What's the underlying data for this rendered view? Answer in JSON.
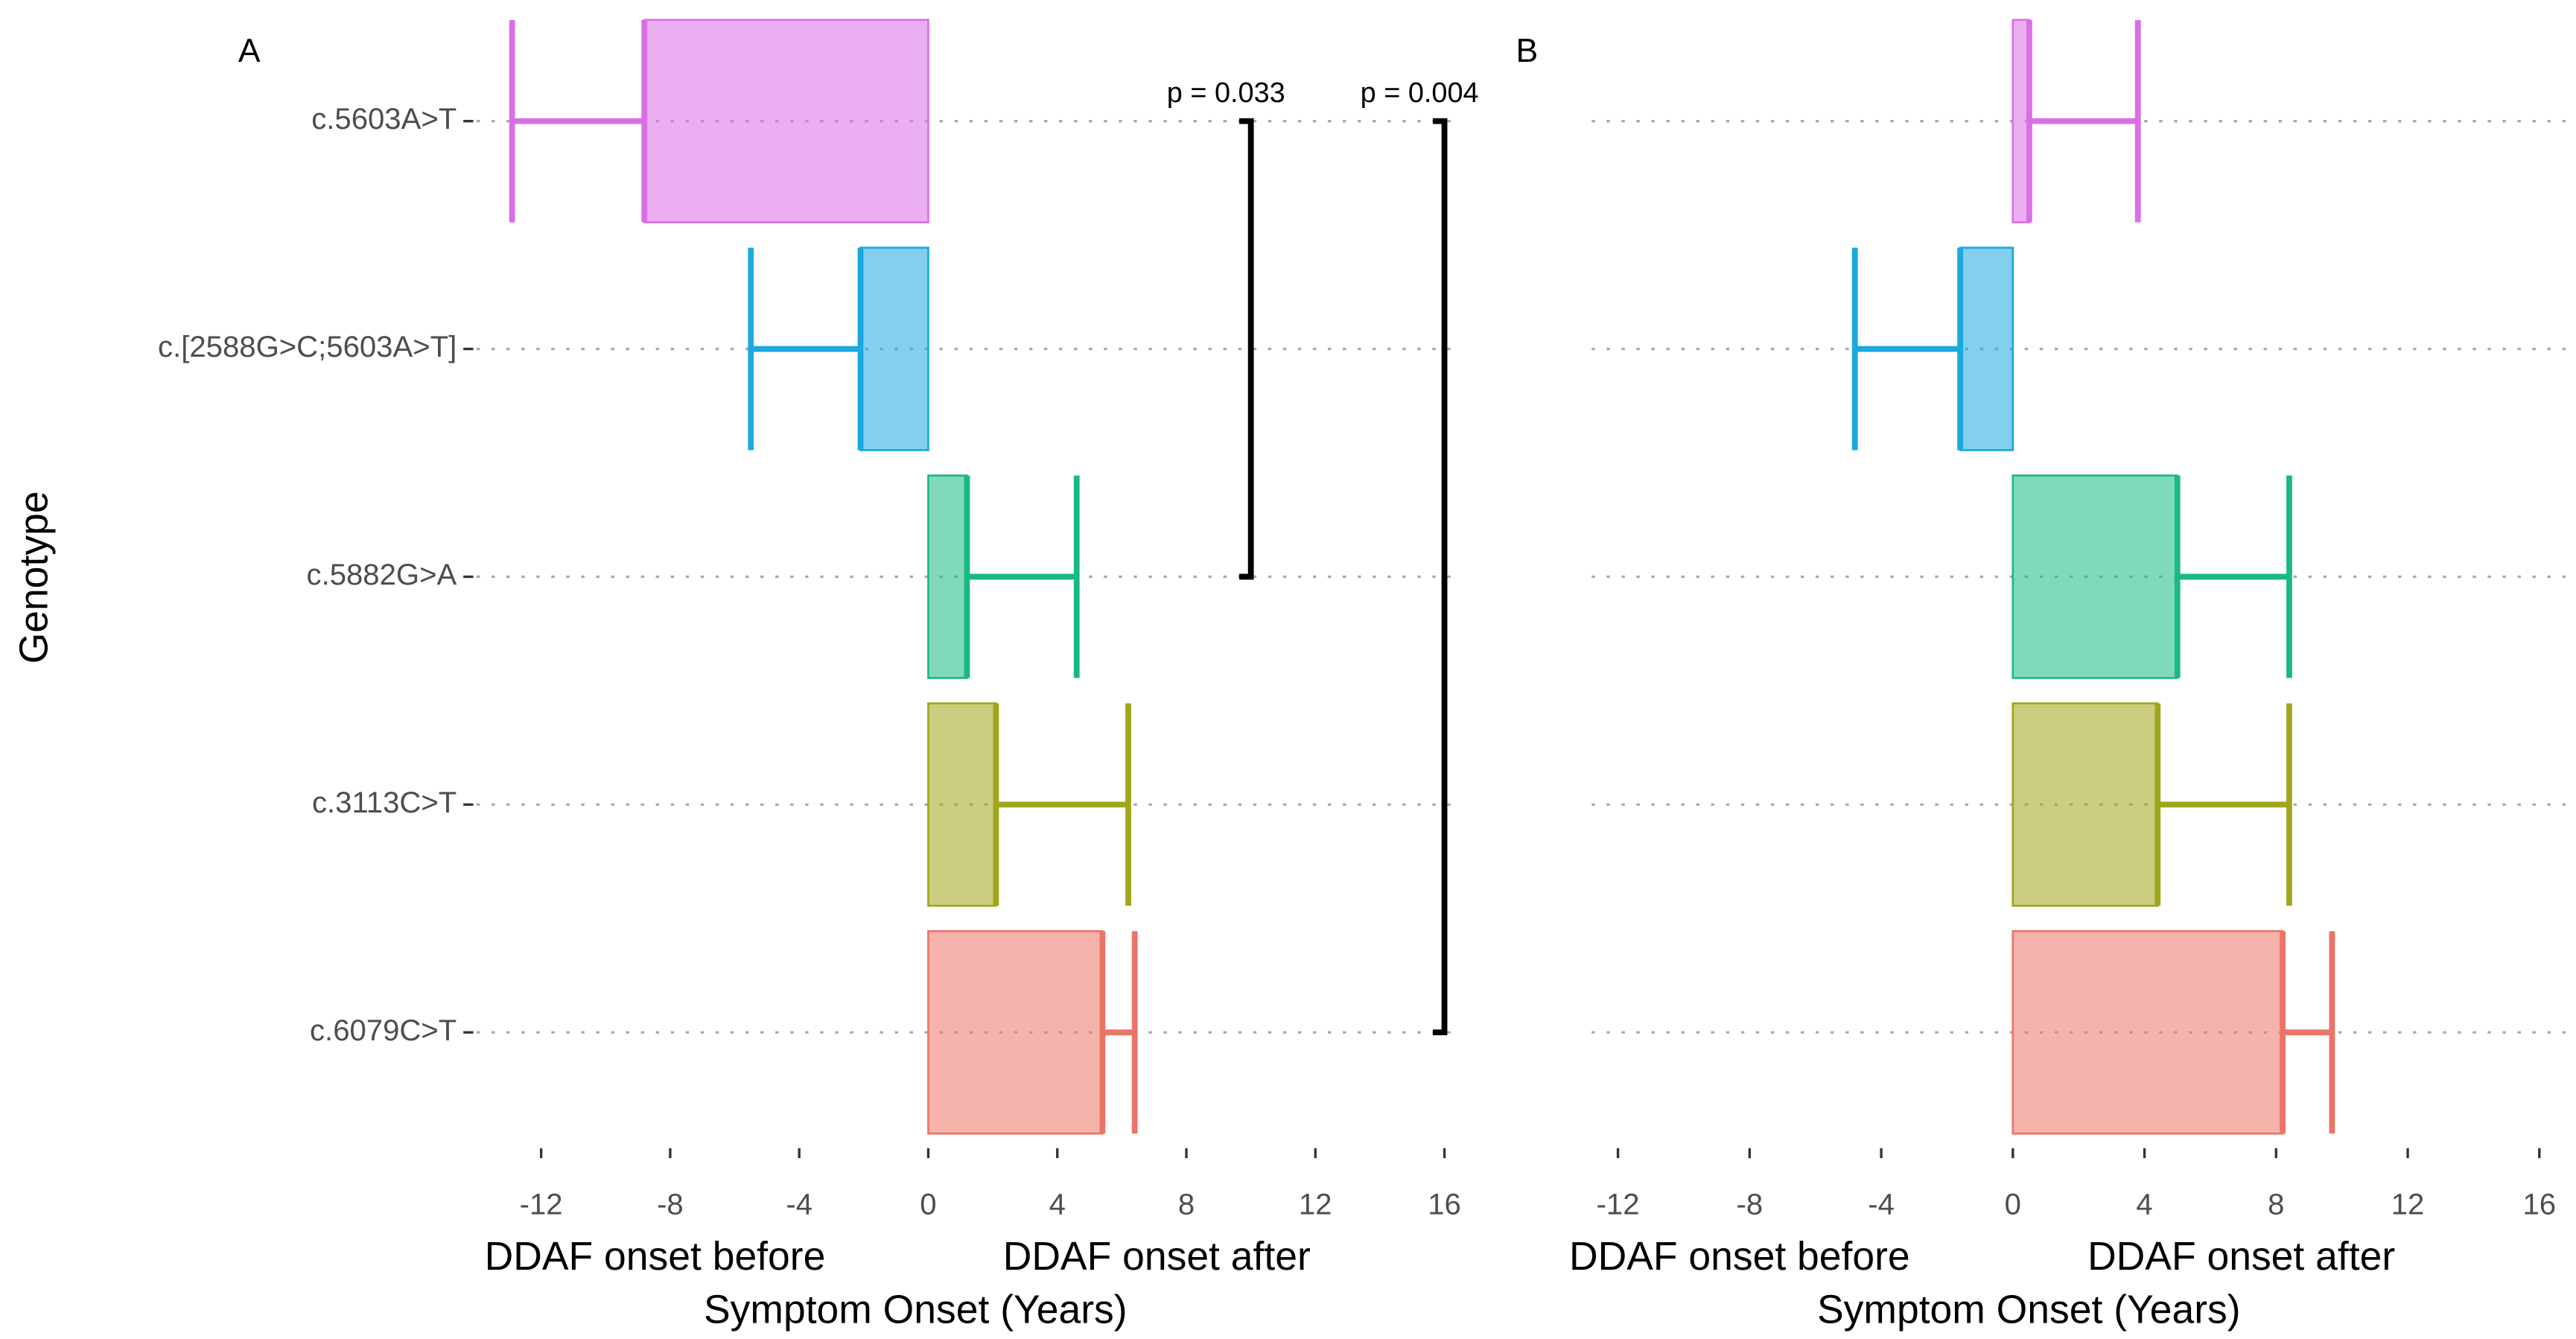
{
  "chart_data": [
    {
      "type": "bar",
      "panel": "A",
      "ylabel": "Genotype",
      "xlabel_left": "DDAF onset before",
      "xlabel_right": "DDAF onset after",
      "xlabel": "Symptom Onset  (Years)",
      "categories": [
        "c.5603A>T",
        "c.[2588G>C;5603A>T]",
        "c.5882G>A",
        "c.3113C>T",
        "c.6079C>T"
      ],
      "values": [
        -8.8,
        -2.1,
        1.2,
        2.1,
        5.4
      ],
      "errors": [
        4.1,
        3.4,
        3.4,
        4.1,
        1.0
      ],
      "colors": [
        "#da6ee6",
        "#1ba8e0",
        "#19b985",
        "#a0a61a",
        "#ec7467"
      ],
      "xlim": [
        -14,
        16.5
      ],
      "xticks": [
        -12,
        -8,
        -4,
        0,
        4,
        8,
        12,
        16
      ],
      "annotations": [
        {
          "text": "p = 0.033",
          "x": 10,
          "from": 0,
          "to": 2
        },
        {
          "text": "p = 0.004",
          "x": 16,
          "from": 0,
          "to": 4
        }
      ]
    },
    {
      "type": "bar",
      "panel": "B",
      "xlabel_left": "DDAF onset before",
      "xlabel_right": "DDAF onset after",
      "xlabel": "Symptom Onset  (Years)",
      "categories": [
        null,
        null,
        null,
        null,
        null
      ],
      "values": [
        0.5,
        -1.6,
        5.0,
        4.4,
        8.2
      ],
      "errors": [
        3.3,
        3.2,
        3.4,
        4.0,
        1.5
      ],
      "colors": [
        "#da6ee6",
        "#1ba8e0",
        "#19b985",
        "#a0a61a",
        "#ec7467"
      ],
      "xlim": [
        -12.8,
        17
      ],
      "xticks": [
        -12,
        -8,
        -4,
        0,
        4,
        8,
        12,
        16
      ]
    }
  ]
}
